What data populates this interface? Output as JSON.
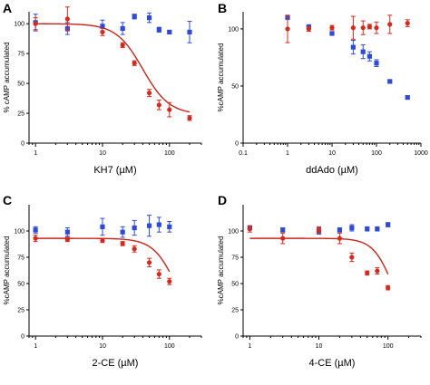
{
  "colors": {
    "blue": "#2f4bd6",
    "red": "#d42a1e",
    "fit": "#c9241a"
  },
  "chart_data": [
    {
      "type": "scatter",
      "panel": "A",
      "xlabel": "KH7 (µM)",
      "ylabel": "% cAMP accumulated",
      "xscale": "log",
      "xlim": [
        0.8,
        300
      ],
      "ylim": [
        0,
        110
      ],
      "xticks": [
        1,
        10,
        100
      ],
      "xtick_labels": [
        "1",
        "10",
        "100"
      ],
      "yticks": [
        0,
        25,
        50,
        75,
        100
      ],
      "ytick_labels": [
        "0",
        "25",
        "50",
        "75",
        "100"
      ],
      "series": [
        {
          "color": "blue",
          "marker": "square",
          "points": [
            [
              1,
              101,
              7
            ],
            [
              3,
              96,
              5
            ],
            [
              10,
              98,
              5
            ],
            [
              20,
              96,
              5
            ],
            [
              30,
              106,
              2
            ],
            [
              50,
              105,
              4
            ],
            [
              70,
              95,
              2
            ],
            [
              100,
              93,
              1
            ],
            [
              200,
              93,
              9
            ]
          ]
        },
        {
          "color": "red",
          "marker": "circle",
          "points": [
            [
              1,
              100,
              5
            ],
            [
              3,
              104,
              10
            ],
            [
              10,
              93,
              3
            ],
            [
              20,
              82,
              2
            ],
            [
              30,
              67,
              2
            ],
            [
              50,
              42,
              3
            ],
            [
              70,
              32,
              4
            ],
            [
              100,
              28,
              6
            ],
            [
              200,
              21,
              2
            ]
          ]
        }
      ],
      "fit": {
        "color": "red",
        "top": 100,
        "bottom": 24,
        "ec50": 40,
        "hill": 2.2,
        "xrange": [
          1,
          200
        ]
      }
    },
    {
      "type": "scatter",
      "panel": "B",
      "xlabel": "ddAdo (µM)",
      "ylabel": "%cAMP accumulated",
      "xscale": "log",
      "xlim": [
        0.1,
        1000
      ],
      "ylim": [
        0,
        115
      ],
      "xticks": [
        0.1,
        1,
        10,
        100,
        1000
      ],
      "xtick_labels": [
        "0.1",
        "1",
        "10",
        "100",
        "1000"
      ],
      "yticks": [
        0,
        50,
        100
      ],
      "ytick_labels": [
        "0",
        "50",
        "100"
      ],
      "series": [
        {
          "color": "blue",
          "marker": "square",
          "points": [
            [
              1,
              110,
              1
            ],
            [
              3,
              102,
              1
            ],
            [
              10,
              96,
              1
            ],
            [
              30,
              84,
              6
            ],
            [
              50,
              80,
              6
            ],
            [
              70,
              76,
              4
            ],
            [
              100,
              70,
              3
            ],
            [
              200,
              54,
              1
            ],
            [
              500,
              40,
              1
            ]
          ]
        },
        {
          "color": "red",
          "marker": "circle",
          "points": [
            [
              1,
              100,
              12
            ],
            [
              3,
              100,
              2
            ],
            [
              10,
              101,
              2
            ],
            [
              30,
              101,
              10
            ],
            [
              50,
              101,
              6
            ],
            [
              70,
              102,
              2
            ],
            [
              100,
              101,
              5
            ],
            [
              200,
              104,
              8
            ],
            [
              500,
              105,
              3
            ]
          ]
        }
      ]
    },
    {
      "type": "scatter",
      "panel": "C",
      "xlabel": "2-CE (µM)",
      "ylabel": "%cAMP accumulated",
      "xscale": "log",
      "xlim": [
        0.8,
        300
      ],
      "ylim": [
        0,
        125
      ],
      "xticks": [
        1,
        10,
        100
      ],
      "xtick_labels": [
        "1",
        "10",
        "100"
      ],
      "yticks": [
        0,
        25,
        50,
        75,
        100
      ],
      "ytick_labels": [
        "0",
        "25",
        "50",
        "75",
        "100"
      ],
      "series": [
        {
          "color": "blue",
          "marker": "square",
          "points": [
            [
              1,
              101,
              3
            ],
            [
              3,
              99,
              4
            ],
            [
              10,
              104,
              8
            ],
            [
              20,
              99,
              5
            ],
            [
              30,
              103,
              7
            ],
            [
              50,
              105,
              10
            ],
            [
              70,
              106,
              7
            ],
            [
              100,
              104,
              5
            ]
          ]
        },
        {
          "color": "red",
          "marker": "circle",
          "points": [
            [
              1,
              93,
              3
            ],
            [
              3,
              92,
              2
            ],
            [
              10,
              91,
              2
            ],
            [
              20,
              88,
              2
            ],
            [
              30,
              83,
              3
            ],
            [
              50,
              70,
              4
            ],
            [
              70,
              59,
              4
            ],
            [
              100,
              52,
              3
            ]
          ]
        }
      ],
      "fit": {
        "color": "red",
        "top": 93,
        "bottom": 0,
        "ec50": 130,
        "hill": 2.5,
        "xrange": [
          1,
          100
        ]
      }
    },
    {
      "type": "scatter",
      "panel": "D",
      "xlabel": "4-CE (µM)",
      "ylabel": "%cAMP accumulated",
      "xscale": "log",
      "xlim": [
        0.8,
        300
      ],
      "ylim": [
        0,
        125
      ],
      "xticks": [
        1,
        10,
        100
      ],
      "xtick_labels": [
        "1",
        "10",
        "100"
      ],
      "yticks": [
        0,
        25,
        50,
        75,
        100
      ],
      "ytick_labels": [
        "0",
        "25",
        "50",
        "75",
        "100"
      ],
      "series": [
        {
          "color": "blue",
          "marker": "square",
          "points": [
            [
              1,
              103,
              2
            ],
            [
              3,
              101,
              2
            ],
            [
              10,
              100,
              3
            ],
            [
              20,
              101,
              2
            ],
            [
              30,
              103,
              3
            ],
            [
              50,
              102,
              2
            ],
            [
              70,
              102,
              2
            ],
            [
              100,
              106,
              2
            ]
          ]
        },
        {
          "color": "red",
          "marker": "circle",
          "points": [
            [
              1,
              102,
              3
            ],
            [
              3,
              93,
              5
            ],
            [
              10,
              101,
              3
            ],
            [
              20,
              93,
              5
            ],
            [
              30,
              75,
              4
            ],
            [
              50,
              60,
              2
            ],
            [
              70,
              62,
              3
            ],
            [
              100,
              46,
              2
            ]
          ]
        }
      ],
      "fit": {
        "color": "red",
        "top": 93,
        "bottom": 0,
        "ec50": 120,
        "hill": 3,
        "xrange": [
          1,
          100
        ]
      }
    }
  ]
}
